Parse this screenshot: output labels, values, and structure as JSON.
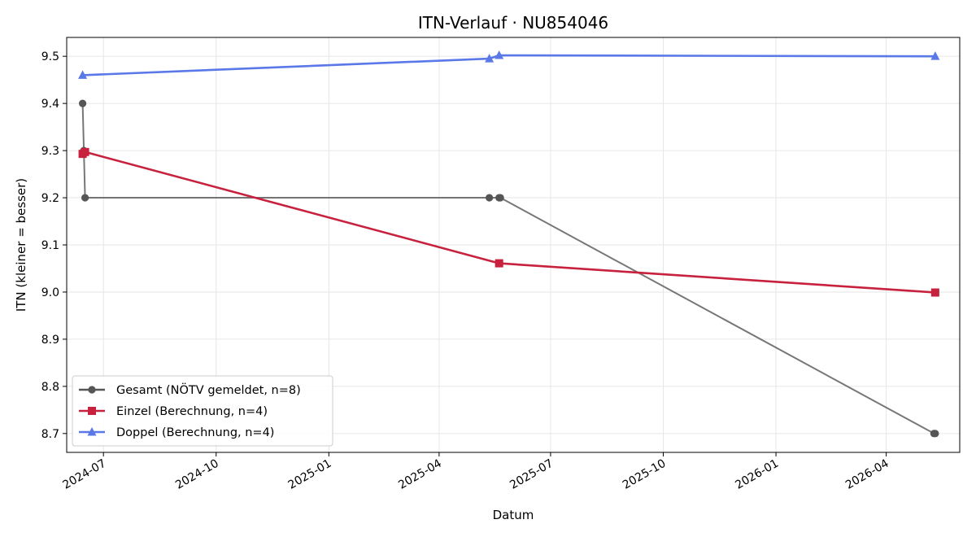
{
  "chart_data": {
    "type": "line",
    "title": "ITN-Verlauf · NU854046",
    "xlabel": "Datum",
    "ylabel": "ITN  (kleiner = besser)",
    "x_ticks": [
      "2024-07",
      "2024-10",
      "2025-01",
      "2025-04",
      "2025-07",
      "2025-10",
      "2026-01",
      "2026-04"
    ],
    "y_ticks": [
      "8.7",
      "8.8",
      "8.9",
      "9.0",
      "9.1",
      "9.2",
      "9.3",
      "9.4",
      "9.5"
    ],
    "xlim": [
      "2024-06-01",
      "2026-05-31"
    ],
    "ylim": [
      8.66,
      9.54
    ],
    "grid": true,
    "legend_position": "lower-left",
    "series": [
      {
        "name": "Gesamt (NÖTV gemeldet, n=8)",
        "color": "#555555",
        "marker": "circle",
        "points": [
          {
            "date": "2024-06-14",
            "value": 9.4
          },
          {
            "date": "2024-06-15",
            "value": 9.3
          },
          {
            "date": "2024-06-16",
            "value": 9.2
          },
          {
            "date": "2025-05-12",
            "value": 9.2
          },
          {
            "date": "2025-05-20",
            "value": 9.2
          },
          {
            "date": "2025-05-21",
            "value": 9.2
          },
          {
            "date": "2026-05-10",
            "value": 8.7
          },
          {
            "date": "2026-05-11",
            "value": 8.7
          }
        ]
      },
      {
        "name": "Einzel (Berechnung, n=4)",
        "color": "#c8213d",
        "marker": "square",
        "points": [
          {
            "date": "2024-06-14",
            "value": 9.293
          },
          {
            "date": "2024-06-16",
            "value": 9.297
          },
          {
            "date": "2025-05-20",
            "value": 9.061
          },
          {
            "date": "2026-05-11",
            "value": 8.999
          }
        ]
      },
      {
        "name": "Doppel (Berechnung, n=4)",
        "color": "#5a78e8",
        "marker": "triangle",
        "points": [
          {
            "date": "2024-06-14",
            "value": 9.46
          },
          {
            "date": "2025-05-12",
            "value": 9.495
          },
          {
            "date": "2025-05-20",
            "value": 9.502
          },
          {
            "date": "2026-05-11",
            "value": 9.5
          }
        ]
      }
    ]
  }
}
